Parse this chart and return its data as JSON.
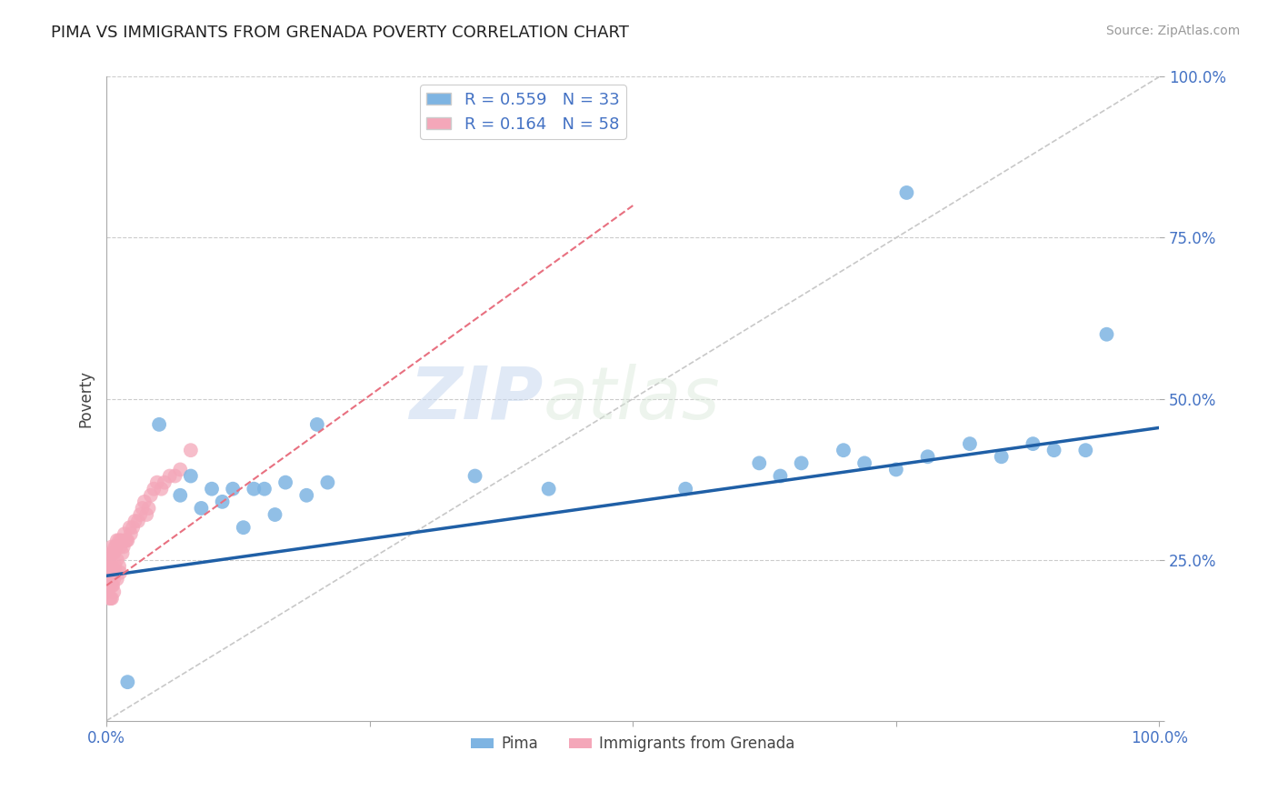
{
  "title": "PIMA VS IMMIGRANTS FROM GRENADA POVERTY CORRELATION CHART",
  "source_text": "Source: ZipAtlas.com",
  "ylabel": "Poverty",
  "xlim": [
    0,
    1.0
  ],
  "ylim": [
    0,
    1.0
  ],
  "xticks": [
    0.0,
    0.25,
    0.5,
    0.75,
    1.0
  ],
  "xticklabels": [
    "0.0%",
    "",
    "",
    "",
    "100.0%"
  ],
  "yticks": [
    0.0,
    0.25,
    0.5,
    0.75,
    1.0
  ],
  "yticklabels": [
    "",
    "25.0%",
    "50.0%",
    "75.0%",
    "100.0%"
  ],
  "pima_color": "#7EB4E2",
  "grenada_color": "#F4A7B9",
  "pima_R": 0.559,
  "pima_N": 33,
  "grenada_R": 0.164,
  "grenada_N": 58,
  "trend_blue_color": "#1F5FA6",
  "trend_pink_color": "#E87080",
  "grid_color": "#CCCCCC",
  "watermark_ZIP": "ZIP",
  "watermark_atlas": "atlas",
  "legend_label_pima": "Pima",
  "legend_label_grenada": "Immigrants from Grenada",
  "pima_x": [
    0.02,
    0.05,
    0.07,
    0.08,
    0.09,
    0.1,
    0.11,
    0.12,
    0.13,
    0.14,
    0.15,
    0.16,
    0.17,
    0.19,
    0.2,
    0.21,
    0.35,
    0.42,
    0.55,
    0.62,
    0.64,
    0.66,
    0.7,
    0.72,
    0.75,
    0.76,
    0.78,
    0.82,
    0.85,
    0.88,
    0.9,
    0.93,
    0.95
  ],
  "pima_y": [
    0.06,
    0.46,
    0.35,
    0.38,
    0.33,
    0.36,
    0.34,
    0.36,
    0.3,
    0.36,
    0.36,
    0.32,
    0.37,
    0.35,
    0.46,
    0.37,
    0.38,
    0.36,
    0.36,
    0.4,
    0.38,
    0.4,
    0.42,
    0.4,
    0.39,
    0.82,
    0.41,
    0.43,
    0.41,
    0.43,
    0.42,
    0.42,
    0.6
  ],
  "grenada_x": [
    0.0,
    0.0,
    0.0,
    0.002,
    0.002,
    0.003,
    0.003,
    0.003,
    0.004,
    0.004,
    0.004,
    0.005,
    0.005,
    0.005,
    0.005,
    0.005,
    0.006,
    0.006,
    0.007,
    0.007,
    0.007,
    0.008,
    0.008,
    0.009,
    0.009,
    0.01,
    0.01,
    0.01,
    0.012,
    0.012,
    0.013,
    0.013,
    0.014,
    0.015,
    0.016,
    0.017,
    0.018,
    0.019,
    0.02,
    0.022,
    0.023,
    0.025,
    0.027,
    0.03,
    0.032,
    0.034,
    0.036,
    0.038,
    0.04,
    0.042,
    0.045,
    0.048,
    0.052,
    0.055,
    0.06,
    0.065,
    0.07,
    0.08
  ],
  "grenada_y": [
    0.22,
    0.24,
    0.2,
    0.25,
    0.22,
    0.24,
    0.21,
    0.19,
    0.26,
    0.22,
    0.19,
    0.21,
    0.27,
    0.24,
    0.19,
    0.23,
    0.26,
    0.21,
    0.26,
    0.22,
    0.2,
    0.27,
    0.24,
    0.27,
    0.23,
    0.28,
    0.25,
    0.22,
    0.28,
    0.24,
    0.27,
    0.23,
    0.28,
    0.26,
    0.27,
    0.29,
    0.28,
    0.28,
    0.28,
    0.3,
    0.29,
    0.3,
    0.31,
    0.31,
    0.32,
    0.33,
    0.34,
    0.32,
    0.33,
    0.35,
    0.36,
    0.37,
    0.36,
    0.37,
    0.38,
    0.38,
    0.39,
    0.42
  ],
  "pima_trend_x0": 0.0,
  "pima_trend_y0": 0.225,
  "pima_trend_x1": 1.0,
  "pima_trend_y1": 0.455,
  "grenada_trend_x0": 0.0,
  "grenada_trend_y0": 0.21,
  "grenada_trend_x1": 0.5,
  "grenada_trend_y1": 0.8
}
